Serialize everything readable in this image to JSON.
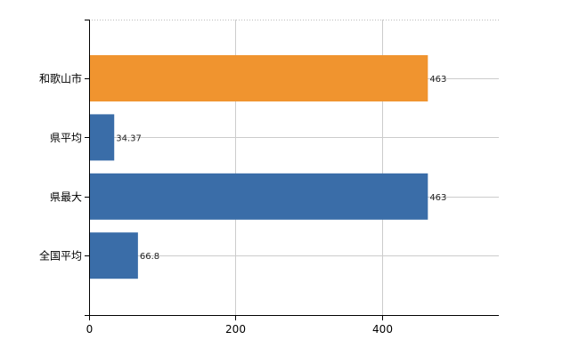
{
  "chart_data": {
    "type": "bar",
    "orientation": "horizontal",
    "categories": [
      "和歌山市",
      "県平均",
      "県最大",
      "全国平均"
    ],
    "values": [
      463,
      34.37,
      463,
      66.8
    ],
    "data_labels": [
      "463",
      "34.37",
      "463",
      "66.8"
    ],
    "bar_colors": [
      "#f0942f",
      "#3a6da8",
      "#3a6da8",
      "#3a6da8"
    ],
    "highlight_color": "#f0942f",
    "base_color": "#3a6da8",
    "xlim": [
      0,
      560
    ],
    "xticks": [
      0,
      200,
      400
    ],
    "xtick_labels": [
      "0",
      "200",
      "400"
    ],
    "grid": true,
    "title": "",
    "xlabel": "",
    "ylabel": ""
  }
}
